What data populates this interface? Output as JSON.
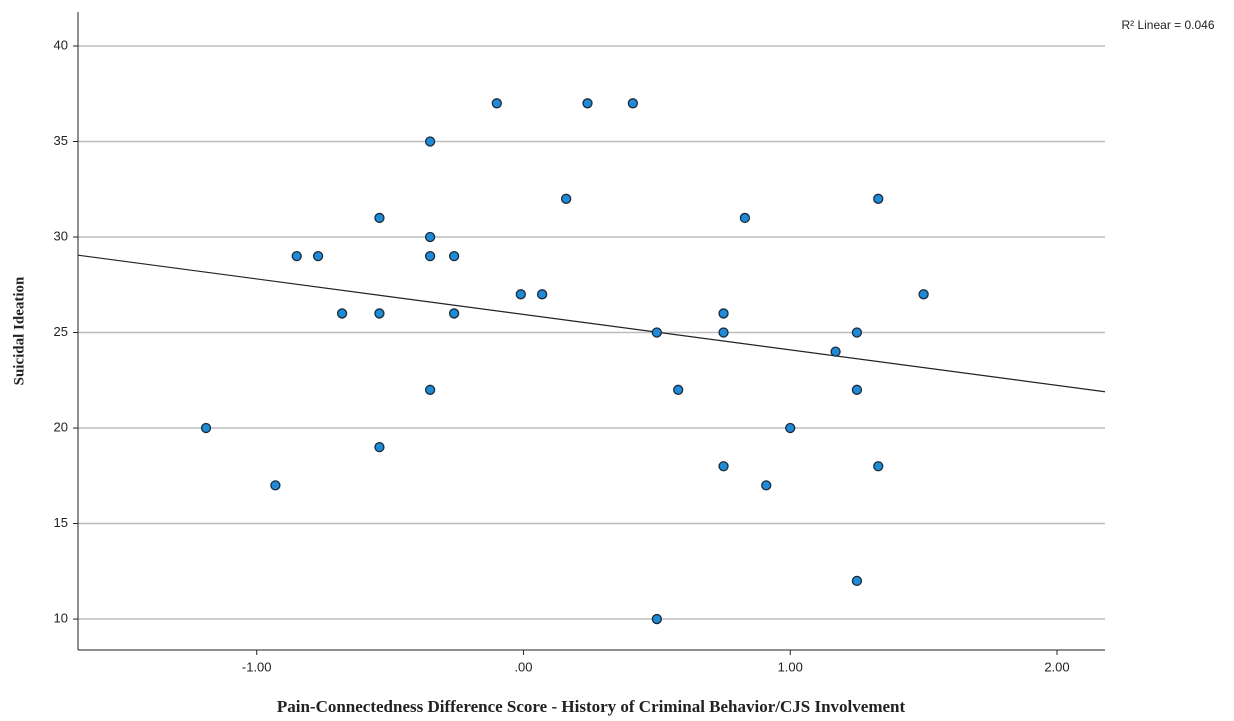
{
  "chart_data": {
    "type": "scatter",
    "x_label": "Pain-Connectedness Difference Score - History of Criminal Behavior/CJS Involvement",
    "y_label": "Suicidal Ideation",
    "annotation": "R² Linear = 0.046",
    "color": "#1f8ad6",
    "grid": true,
    "xlim": [
      -1.67,
      2.18
    ],
    "ylim": [
      8.38,
      41.78
    ],
    "xticks": [
      {
        "value": -1,
        "label": "-1.00"
      },
      {
        "value": 0,
        "label": ".00"
      },
      {
        "value": 1,
        "label": "1.00"
      },
      {
        "value": 2,
        "label": "2.00"
      }
    ],
    "yticks": [
      10,
      15,
      20,
      25,
      30,
      35,
      40
    ],
    "x": [
      -1.19,
      -0.93,
      -0.85,
      -0.77,
      -0.68,
      -0.54,
      -0.54,
      -0.54,
      -0.35,
      -0.35,
      -0.35,
      -0.35,
      -0.26,
      -0.26,
      -0.1,
      -0.01,
      0.07,
      0.16,
      0.24,
      0.41,
      0.5,
      0.5,
      0.58,
      0.75,
      0.75,
      0.75,
      0.83,
      0.91,
      1.0,
      1.17,
      1.25,
      1.25,
      1.25,
      1.33,
      1.33,
      1.5
    ],
    "values": [
      20,
      17,
      29,
      29,
      26,
      31,
      26,
      19,
      35,
      30,
      29,
      22,
      29,
      26,
      37,
      27,
      27,
      32,
      37,
      37,
      25,
      10,
      22,
      26,
      25,
      18,
      31,
      17,
      20,
      24,
      25,
      22,
      12,
      32,
      18,
      27
    ],
    "fit_line": {
      "x": [
        -1.67,
        2.18
      ],
      "y": [
        29.05,
        21.9
      ]
    }
  }
}
